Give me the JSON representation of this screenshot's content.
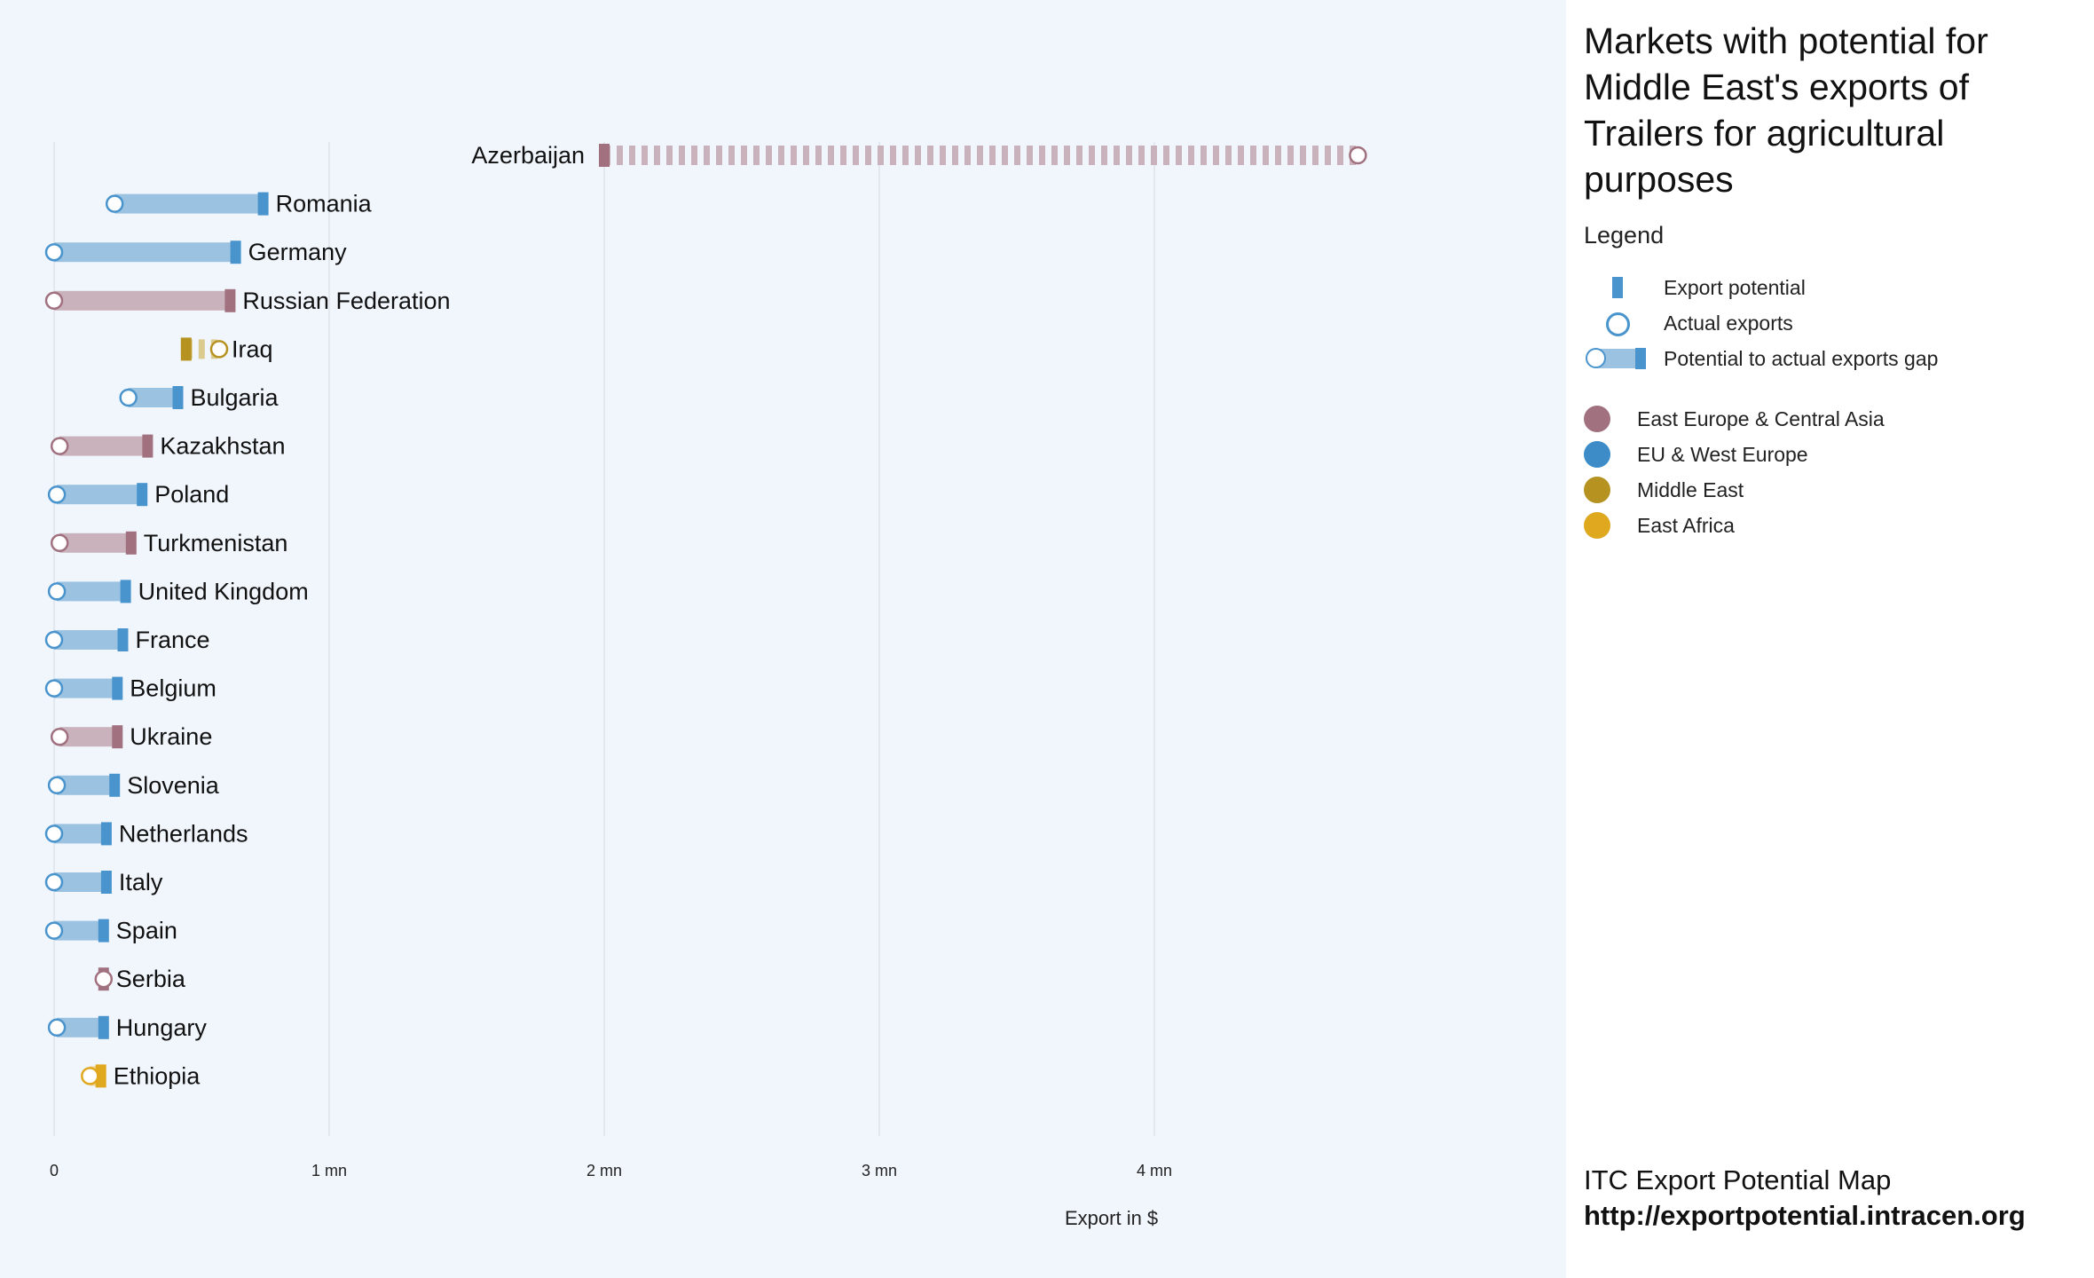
{
  "title": "Markets with potential for Middle East's exports of Trailers for agricultural purposes",
  "legend": {
    "title": "Legend",
    "items": [
      {
        "key": "potential",
        "label": "Export potential"
      },
      {
        "key": "actual",
        "label": "Actual exports"
      },
      {
        "key": "gap",
        "label": "Potential to actual exports gap"
      }
    ],
    "regions": [
      {
        "name": "East Europe & Central Asia",
        "color": "#a1717f"
      },
      {
        "name": "EU & West Europe",
        "color": "#3d8cc7"
      },
      {
        "name": "Middle East",
        "color": "#b69220"
      },
      {
        "name": "East Africa",
        "color": "#e0a81e"
      }
    ]
  },
  "footer": {
    "line1": "ITC Export Potential Map",
    "line2": "http://exportpotential.intracen.org"
  },
  "chart_data": {
    "type": "dumbbell",
    "xlabel": "Export in $",
    "xlim": [
      0,
      5.5
    ],
    "xticks": [
      {
        "value": 0,
        "label": "0"
      },
      {
        "value": 1,
        "label": "1 mn"
      },
      {
        "value": 2,
        "label": "2 mn"
      },
      {
        "value": 3,
        "label": "3 mn"
      },
      {
        "value": 4,
        "label": "4 mn"
      }
    ],
    "grid": true,
    "colors": {
      "East Europe & Central Asia": {
        "bar": "#c9b2bc",
        "marker": "#a1717f"
      },
      "EU & West Europe": {
        "bar": "#9bc2e0",
        "marker": "#4a94cd"
      },
      "Middle East": {
        "bar": "#dccb8f",
        "marker": "#b69220"
      },
      "East Africa": {
        "bar": "#efd28f",
        "marker": "#e0a81e"
      }
    },
    "markets": [
      {
        "name": "Azerbaijan",
        "region": "East Europe & Central Asia",
        "potential": 2.0,
        "actual": 4.74
      },
      {
        "name": "Romania",
        "region": "EU & West Europe",
        "potential": 0.76,
        "actual": 0.22
      },
      {
        "name": "Germany",
        "region": "EU & West Europe",
        "potential": 0.66,
        "actual": 0.0
      },
      {
        "name": "Russian Federation",
        "region": "East Europe & Central Asia",
        "potential": 0.64,
        "actual": 0.0
      },
      {
        "name": "Iraq",
        "region": "Middle East",
        "potential": 0.48,
        "actual": 0.6
      },
      {
        "name": "Bulgaria",
        "region": "EU & West Europe",
        "potential": 0.45,
        "actual": 0.27
      },
      {
        "name": "Kazakhstan",
        "region": "East Europe & Central Asia",
        "potential": 0.34,
        "actual": 0.02
      },
      {
        "name": "Poland",
        "region": "EU & West Europe",
        "potential": 0.32,
        "actual": 0.01
      },
      {
        "name": "Turkmenistan",
        "region": "East Europe & Central Asia",
        "potential": 0.28,
        "actual": 0.02
      },
      {
        "name": "United Kingdom",
        "region": "EU & West Europe",
        "potential": 0.26,
        "actual": 0.01
      },
      {
        "name": "France",
        "region": "EU & West Europe",
        "potential": 0.25,
        "actual": 0.0
      },
      {
        "name": "Belgium",
        "region": "EU & West Europe",
        "potential": 0.23,
        "actual": 0.0
      },
      {
        "name": "Ukraine",
        "region": "East Europe & Central Asia",
        "potential": 0.23,
        "actual": 0.02
      },
      {
        "name": "Slovenia",
        "region": "EU & West Europe",
        "potential": 0.22,
        "actual": 0.01
      },
      {
        "name": "Netherlands",
        "region": "EU & West Europe",
        "potential": 0.19,
        "actual": 0.0
      },
      {
        "name": "Italy",
        "region": "EU & West Europe",
        "potential": 0.19,
        "actual": 0.0
      },
      {
        "name": "Spain",
        "region": "EU & West Europe",
        "potential": 0.18,
        "actual": 0.0
      },
      {
        "name": "Serbia",
        "region": "East Europe & Central Asia",
        "potential": 0.18,
        "actual": 0.18
      },
      {
        "name": "Hungary",
        "region": "EU & West Europe",
        "potential": 0.18,
        "actual": 0.01
      },
      {
        "name": "Ethiopia",
        "region": "East Africa",
        "potential": 0.17,
        "actual": 0.13
      }
    ]
  }
}
